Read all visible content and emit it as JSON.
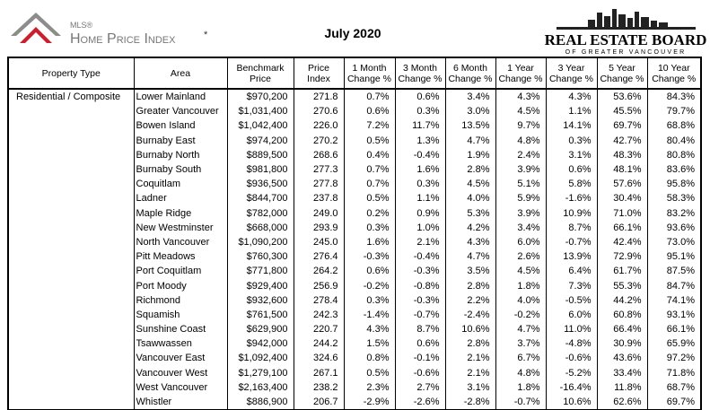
{
  "header": {
    "logo": {
      "mls": "MLS®",
      "name": "Home Price Index",
      "mark": "*"
    },
    "title": "July 2020",
    "board": {
      "name": "REAL ESTATE BOARD",
      "region": "OF GREATER VANCOUVER"
    }
  },
  "table": {
    "columns": [
      "Property Type",
      "Area",
      "Benchmark\nPrice",
      "Price\nIndex",
      "1 Month\nChange %",
      "3 Month\nChange %",
      "6 Month\nChange %",
      "1 Year\nChange %",
      "3 Year\nChange %",
      "5 Year\nChange %",
      "10 Year\nChange %"
    ],
    "property_type": "Residential / Composite",
    "rows": [
      [
        "Lower Mainland",
        "$970,200",
        "271.8",
        "0.7%",
        "0.6%",
        "3.4%",
        "4.3%",
        "4.3%",
        "53.6%",
        "84.3%"
      ],
      [
        "Greater Vancouver",
        "$1,031,400",
        "270.6",
        "0.6%",
        "0.3%",
        "3.0%",
        "4.5%",
        "1.1%",
        "45.5%",
        "79.7%"
      ],
      [
        "Bowen Island",
        "$1,042,400",
        "226.0",
        "7.2%",
        "11.7%",
        "13.5%",
        "9.7%",
        "14.1%",
        "69.7%",
        "68.8%"
      ],
      [
        "Burnaby East",
        "$974,200",
        "270.2",
        "0.5%",
        "1.3%",
        "4.7%",
        "4.8%",
        "0.3%",
        "42.7%",
        "80.4%"
      ],
      [
        "Burnaby North",
        "$889,500",
        "268.6",
        "0.4%",
        "-0.4%",
        "1.9%",
        "2.4%",
        "3.1%",
        "48.3%",
        "80.8%"
      ],
      [
        "Burnaby South",
        "$981,800",
        "277.3",
        "0.7%",
        "1.6%",
        "2.8%",
        "3.9%",
        "0.6%",
        "48.1%",
        "83.6%"
      ],
      [
        "Coquitlam",
        "$936,500",
        "277.8",
        "0.7%",
        "0.3%",
        "4.5%",
        "5.1%",
        "5.8%",
        "57.6%",
        "95.8%"
      ],
      [
        "Ladner",
        "$844,700",
        "237.8",
        "0.5%",
        "1.1%",
        "4.0%",
        "5.9%",
        "-1.6%",
        "30.4%",
        "58.3%"
      ],
      [
        "Maple Ridge",
        "$782,000",
        "249.0",
        "0.2%",
        "0.9%",
        "5.3%",
        "3.9%",
        "10.9%",
        "71.0%",
        "83.2%"
      ],
      [
        "New Westminster",
        "$668,000",
        "293.9",
        "0.3%",
        "1.0%",
        "4.2%",
        "3.4%",
        "8.7%",
        "66.1%",
        "93.6%"
      ],
      [
        "North Vancouver",
        "$1,090,200",
        "245.0",
        "1.6%",
        "2.1%",
        "4.3%",
        "6.0%",
        "-0.7%",
        "42.4%",
        "73.0%"
      ],
      [
        "Pitt Meadows",
        "$760,300",
        "276.4",
        "-0.3%",
        "-0.4%",
        "4.7%",
        "2.6%",
        "13.9%",
        "72.9%",
        "95.1%"
      ],
      [
        "Port Coquitlam",
        "$771,800",
        "264.2",
        "0.6%",
        "-0.3%",
        "3.5%",
        "4.5%",
        "6.4%",
        "61.7%",
        "87.5%"
      ],
      [
        "Port Moody",
        "$929,400",
        "256.9",
        "-0.2%",
        "-0.8%",
        "2.8%",
        "1.8%",
        "7.3%",
        "55.3%",
        "84.7%"
      ],
      [
        "Richmond",
        "$932,600",
        "278.4",
        "0.3%",
        "-0.3%",
        "2.2%",
        "4.0%",
        "-0.5%",
        "44.2%",
        "74.1%"
      ],
      [
        "Squamish",
        "$761,500",
        "242.3",
        "-1.4%",
        "-0.7%",
        "-2.4%",
        "-0.2%",
        "6.0%",
        "60.8%",
        "93.1%"
      ],
      [
        "Sunshine Coast",
        "$629,900",
        "220.7",
        "4.3%",
        "8.7%",
        "10.6%",
        "4.7%",
        "11.0%",
        "66.4%",
        "66.1%"
      ],
      [
        "Tsawwassen",
        "$942,000",
        "244.2",
        "1.5%",
        "0.6%",
        "2.8%",
        "3.7%",
        "-4.8%",
        "30.9%",
        "65.9%"
      ],
      [
        "Vancouver East",
        "$1,092,400",
        "324.6",
        "0.8%",
        "-0.1%",
        "2.1%",
        "6.7%",
        "-0.6%",
        "43.6%",
        "97.2%"
      ],
      [
        "Vancouver West",
        "$1,279,100",
        "267.1",
        "0.5%",
        "-0.6%",
        "2.1%",
        "4.8%",
        "-5.2%",
        "33.4%",
        "71.8%"
      ],
      [
        "West Vancouver",
        "$2,163,400",
        "238.2",
        "2.3%",
        "2.7%",
        "3.1%",
        "1.8%",
        "-16.4%",
        "11.8%",
        "68.7%"
      ],
      [
        "Whistler",
        "$886,900",
        "206.7",
        "-2.9%",
        "-2.6%",
        "-2.8%",
        "-0.7%",
        "10.6%",
        "62.6%",
        "69.7%"
      ]
    ]
  }
}
